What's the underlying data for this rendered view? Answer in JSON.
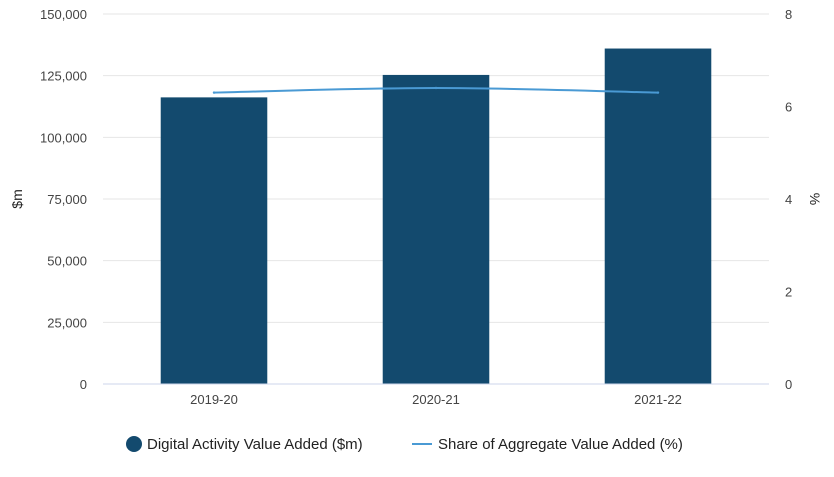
{
  "chart_data": {
    "type": "bar",
    "title": "",
    "categories": [
      "2019-20",
      "2020-21",
      "2021-22"
    ],
    "series": [
      {
        "name": "Digital Activity Value Added ($m)",
        "type": "bar",
        "axis": "left",
        "values": [
          116200,
          125300,
          136000
        ]
      },
      {
        "name": "Share of Aggregate Value Added (%)",
        "type": "line",
        "axis": "right",
        "values": [
          6.3,
          6.4,
          6.3
        ]
      }
    ],
    "ylabel": "$m",
    "y2label": "%",
    "ylim": [
      0,
      150000
    ],
    "y2lim": [
      0,
      8
    ],
    "y_ticks": [
      "0",
      "25,000",
      "50,000",
      "75,000",
      "100,000",
      "125,000",
      "150,000"
    ],
    "y2_ticks": [
      "0",
      "2",
      "4",
      "6",
      "8"
    ],
    "grid": true,
    "legend_position": "bottom",
    "colors": {
      "bar": "#134a6e",
      "line": "#4a9ad4",
      "grid": "#e6e6e6",
      "axis": "#ccd6eb"
    }
  }
}
